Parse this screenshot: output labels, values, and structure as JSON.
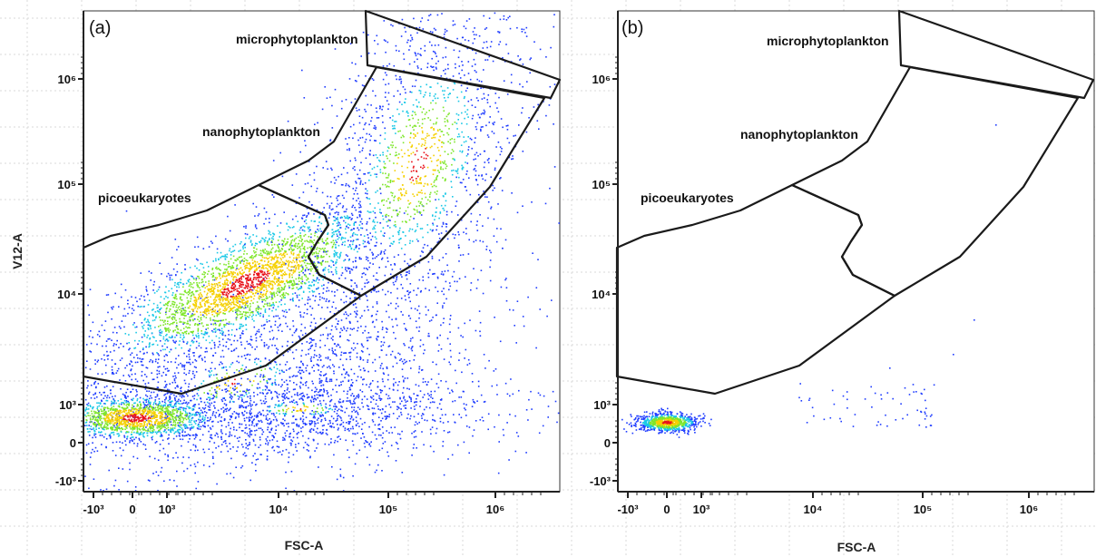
{
  "chart_data": [
    {
      "type": "scatter",
      "subtype": "flow-cytometry-density-plot",
      "panel": "(a)",
      "xlabel": "FSC-A",
      "ylabel": "V12-A",
      "x_scale": "biexponential",
      "y_scale": "biexponential",
      "x_ticks": [
        "-10³",
        "0",
        "10³",
        "10⁴",
        "10⁵",
        "10⁶"
      ],
      "y_ticks": [
        "-10³",
        "0",
        "10³",
        "10⁴",
        "10⁵",
        "10⁶"
      ],
      "gates": [
        {
          "name": "microphytoplankton"
        },
        {
          "name": "nanophytoplankton"
        },
        {
          "name": "picoeukaryotes"
        }
      ],
      "populations": [
        {
          "desc": "dense cluster near origin",
          "x_center": 100,
          "y_center": 600,
          "peak": "red"
        },
        {
          "desc": "picoeukaryote main cluster",
          "x_center": 5000,
          "y_center": 12000,
          "peak": "red"
        },
        {
          "desc": "nanophytoplankton diagonal cloud",
          "x_center": 150000,
          "y_center": 200000,
          "peak": "cyan"
        }
      ]
    },
    {
      "type": "scatter",
      "subtype": "flow-cytometry-density-plot",
      "panel": "(b)",
      "xlabel": "FSC-A",
      "ylabel": "",
      "x_scale": "biexponential",
      "y_scale": "biexponential",
      "x_ticks": [
        "-10³",
        "0",
        "10³",
        "10⁴",
        "10⁵",
        "10⁶"
      ],
      "y_ticks": [
        "-10³",
        "0",
        "10³",
        "10⁴",
        "10⁵",
        "10⁶"
      ],
      "gates": [
        {
          "name": "microphytoplankton"
        },
        {
          "name": "nanophytoplankton"
        },
        {
          "name": "picoeukaryotes"
        }
      ],
      "populations": [
        {
          "desc": "single dense cluster near origin",
          "x_center": 0,
          "y_center": 500,
          "peak": "red"
        },
        {
          "desc": "sparse scattered events",
          "x_center": 50000,
          "y_center": 1000,
          "peak": "blue"
        }
      ]
    }
  ],
  "colors": {
    "low_density": "#1f3cff",
    "mid_density": "#19c8e6",
    "high_mid": "#7ee62a",
    "high": "#f5d000",
    "peak": "#e8141c"
  }
}
